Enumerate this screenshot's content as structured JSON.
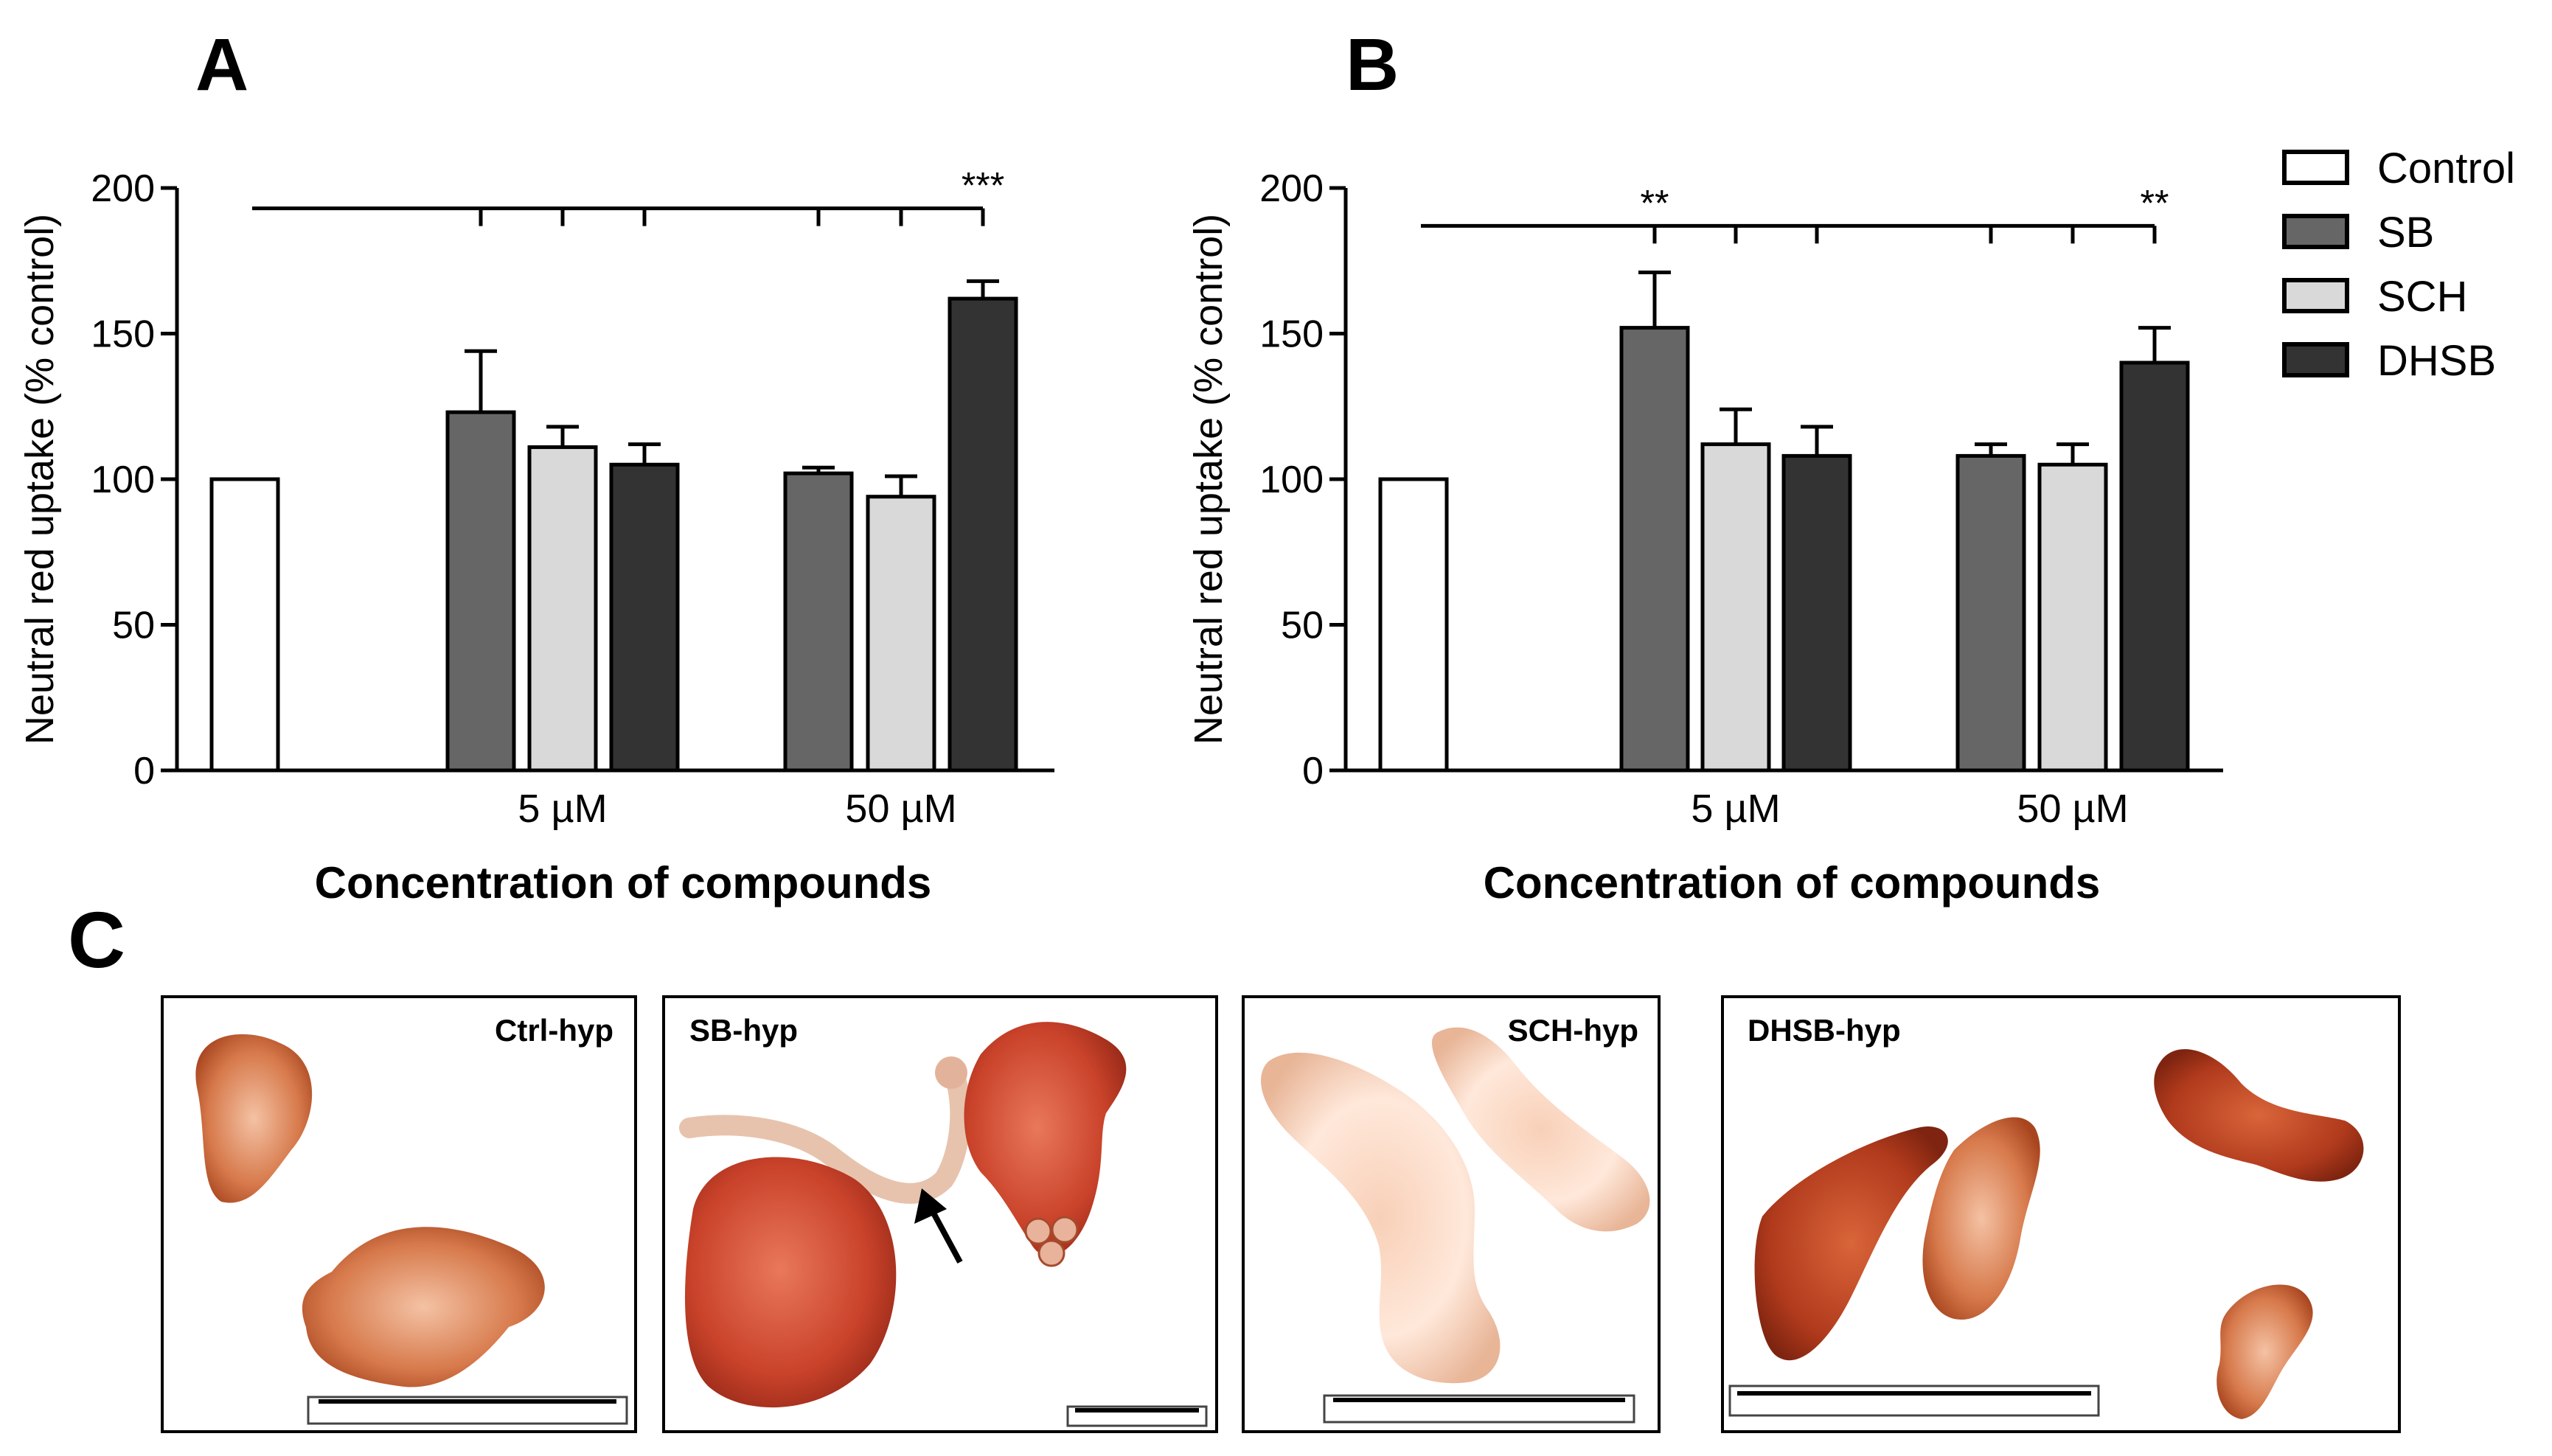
{
  "panel_letters": {
    "a": "A",
    "b": "B",
    "c": "C"
  },
  "colors": {
    "control": "#ffffff",
    "sb": "#666666",
    "sch": "#d9d9d9",
    "dhsb": "#333333",
    "stroke": "#000000"
  },
  "legend": [
    {
      "key": "control",
      "label": "Control"
    },
    {
      "key": "sb",
      "label": "SB"
    },
    {
      "key": "sch",
      "label": "SCH"
    },
    {
      "key": "dhsb",
      "label": "DHSB"
    }
  ],
  "chart_data": [
    {
      "panel": "A",
      "type": "bar",
      "ylabel": "Neutral red uptake (% control)",
      "xlabel": "Concentration of compounds",
      "ylim": [
        0,
        200
      ],
      "yticks": [
        0,
        50,
        100,
        150,
        200
      ],
      "groups": [
        "5 µM",
        "50 µM"
      ],
      "bars": [
        {
          "key": "control",
          "group": null,
          "value": 100,
          "err": 0
        },
        {
          "key": "sb",
          "group": "5 µM",
          "value": 123,
          "err": 21
        },
        {
          "key": "sch",
          "group": "5 µM",
          "value": 111,
          "err": 7
        },
        {
          "key": "dhsb",
          "group": "5 µM",
          "value": 105,
          "err": 7
        },
        {
          "key": "sb",
          "group": "50 µM",
          "value": 102,
          "err": 2
        },
        {
          "key": "sch",
          "group": "50 µM",
          "value": 94,
          "err": 7
        },
        {
          "key": "dhsb",
          "group": "50 µM",
          "value": 162,
          "err": 6
        }
      ],
      "significance_line": {
        "y": 193,
        "ticks": [
          1,
          2,
          3,
          4,
          5,
          6
        ]
      },
      "significance": [
        {
          "bar": 6,
          "label": "***"
        }
      ]
    },
    {
      "panel": "B",
      "type": "bar",
      "ylabel": "Neutral red uptake (% control)",
      "xlabel": "Concentration of compounds",
      "ylim": [
        0,
        200
      ],
      "yticks": [
        0,
        50,
        100,
        150,
        200
      ],
      "groups": [
        "5 µM",
        "50 µM"
      ],
      "bars": [
        {
          "key": "control",
          "group": null,
          "value": 100,
          "err": 0
        },
        {
          "key": "sb",
          "group": "5 µM",
          "value": 152,
          "err": 19
        },
        {
          "key": "sch",
          "group": "5 µM",
          "value": 112,
          "err": 12
        },
        {
          "key": "dhsb",
          "group": "5 µM",
          "value": 108,
          "err": 10
        },
        {
          "key": "sb",
          "group": "50 µM",
          "value": 108,
          "err": 4
        },
        {
          "key": "sch",
          "group": "50 µM",
          "value": 105,
          "err": 7
        },
        {
          "key": "dhsb",
          "group": "50 µM",
          "value": 140,
          "err": 12
        }
      ],
      "significance_line": {
        "y": 187,
        "ticks": [
          1,
          2,
          3,
          4,
          5,
          6
        ]
      },
      "significance": [
        {
          "bar": 1,
          "label": "**"
        },
        {
          "bar": 6,
          "label": "**"
        }
      ]
    }
  ],
  "micrographs": [
    {
      "label": "Ctrl-hyp"
    },
    {
      "label": "SB-hyp"
    },
    {
      "label": "SCH-hyp"
    },
    {
      "label": "DHSB-hyp"
    }
  ]
}
